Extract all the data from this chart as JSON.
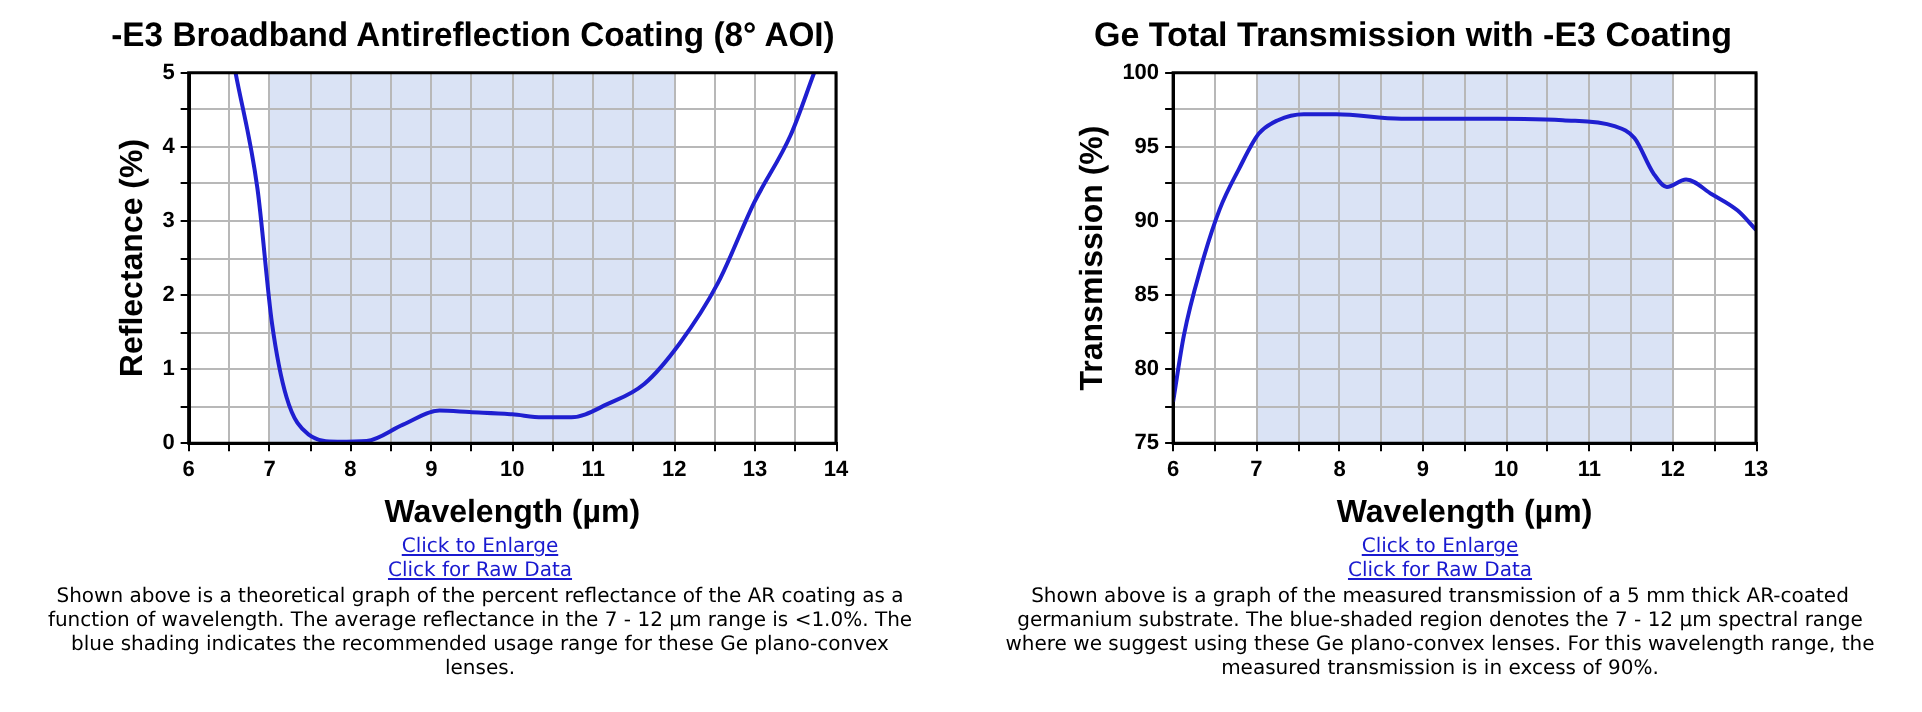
{
  "chart_data": [
    {
      "type": "line",
      "title": "-E3 Broadband Antireflection Coating (8° AOI)",
      "xlabel": "Wavelength (µm)",
      "ylabel": "Reflectance (%)",
      "x": [
        6.58,
        6.85,
        7.03,
        7.21,
        7.48,
        7.84,
        8.2,
        8.65,
        9.1,
        9.47,
        10.0,
        10.37,
        10.73,
        11.18,
        11.63,
        12.07,
        12.54,
        12.99,
        13.44,
        13.73
      ],
      "series": [
        {
          "color": "#1f1fd0",
          "values": [
            5,
            3.44,
            1.62,
            0.62,
            0.12,
            0.02,
            0.03,
            0.25,
            0.44,
            0.42,
            0.39,
            0.35,
            0.35,
            0.53,
            0.8,
            1.35,
            2.16,
            3.25,
            4.16,
            5
          ]
        }
      ],
      "xlim": [
        6,
        14
      ],
      "ylim": [
        0,
        5
      ],
      "xticks": [
        6,
        {
          "value": 6.5,
          "label": null
        },
        7,
        {
          "value": 7.5,
          "label": null
        },
        8,
        {
          "value": 8.5,
          "label": null
        },
        9,
        {
          "value": 9.5,
          "label": null
        },
        10,
        {
          "value": 10.5,
          "label": null
        },
        11,
        {
          "value": 11.5,
          "label": null
        },
        12,
        {
          "value": 12.5,
          "label": null
        },
        13,
        {
          "value": 13.5,
          "label": null
        },
        14
      ],
      "yticks": [
        0,
        {
          "value": 0.5,
          "label": null
        },
        1,
        {
          "value": 1.5,
          "label": null
        },
        2,
        {
          "value": 2.5,
          "label": null
        },
        3,
        {
          "value": 3.5,
          "label": null
        },
        4,
        {
          "value": 4.5,
          "label": null
        },
        5
      ],
      "grid": true,
      "bands": [
        {
          "axis": "x",
          "from": 7,
          "to": 12,
          "color": "#dae3f5"
        }
      ],
      "annotations": [
        "Click to Enlarge",
        "Click for Raw Data",
        "Shown above is a theoretical graph of the percent reflectance of the AR coating as a function of wavelength. The average reflectance in the 7 - 12 µm range is <1.0%. The blue shading indicates the recommended usage range for these Ge plano-convex lenses."
      ]
    },
    {
      "type": "line",
      "title": "Ge Total Transmission with -E3 Coating",
      "xlabel": "Wavelength (µm)",
      "ylabel": "Transmission (%)",
      "x": [
        6,
        6.13,
        6.33,
        6.56,
        6.79,
        7.03,
        7.26,
        7.57,
        7.96,
        8.74,
        9.9,
        10.68,
        11.3,
        11.54,
        11.77,
        11.93,
        12.16,
        12.47,
        12.78,
        13
      ],
      "series": [
        {
          "color": "#1f1fd0",
          "values": [
            77.8,
            82.3,
            86.8,
            90.8,
            93.5,
            95.9,
            96.8,
            97.2,
            97.2,
            96.9,
            96.9,
            96.8,
            96.4,
            95.6,
            93.2,
            92.3,
            92.8,
            91.8,
            90.7,
            89.4
          ]
        }
      ],
      "xlim": [
        6,
        13
      ],
      "ylim": [
        75,
        100
      ],
      "xticks": [
        6,
        {
          "value": 6.5,
          "label": null
        },
        7,
        {
          "value": 7.5,
          "label": null
        },
        8,
        {
          "value": 8.5,
          "label": null
        },
        9,
        {
          "value": 9.5,
          "label": null
        },
        10,
        {
          "value": 10.5,
          "label": null
        },
        11,
        {
          "value": 11.5,
          "label": null
        },
        12,
        {
          "value": 12.5,
          "label": null
        },
        13
      ],
      "yticks": [
        75,
        {
          "value": 77.5,
          "label": null
        },
        80,
        {
          "value": 82.5,
          "label": null
        },
        85,
        {
          "value": 87.5,
          "label": null
        },
        90,
        {
          "value": 92.5,
          "label": null
        },
        95,
        {
          "value": 97.5,
          "label": null
        },
        100
      ],
      "grid": true,
      "bands": [
        {
          "axis": "x",
          "from": 7,
          "to": 12,
          "color": "#dae3f5"
        }
      ],
      "annotations": [
        "Click to Enlarge",
        "Click for Raw Data",
        "Shown above is a graph of the measured transmission of a 5 mm thick AR-coated germanium substrate. The blue-shaded region denotes the 7 - 12 µm spectral range where we suggest using these Ge plano-convex lenses. For this wavelength range, the measured transmission is in excess of 90%."
      ]
    }
  ]
}
